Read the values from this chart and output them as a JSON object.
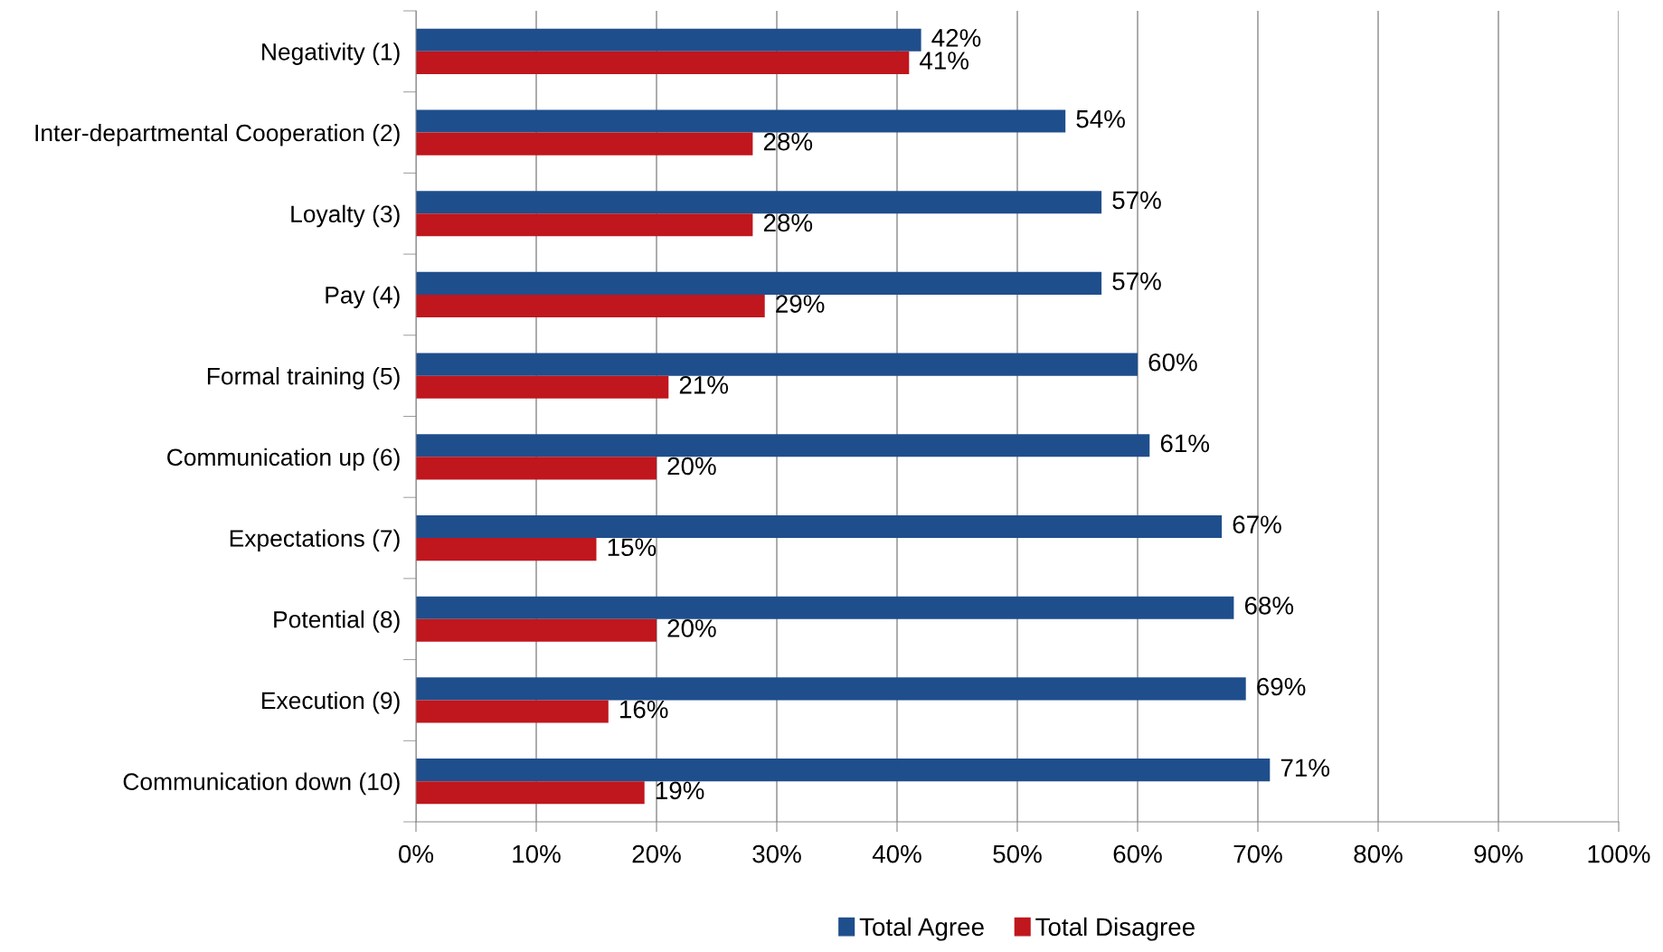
{
  "chart_data": {
    "type": "bar",
    "orientation": "horizontal",
    "categories": [
      "Negativity (1)",
      "Inter-departmental Cooperation (2)",
      "Loyalty (3)",
      "Pay (4)",
      "Formal training (5)",
      "Communication up (6)",
      "Expectations (7)",
      "Potential (8)",
      "Execution (9)",
      "Communication down (10)"
    ],
    "series": [
      {
        "name": "Total Agree",
        "color": "#1f4e8c",
        "values": [
          42,
          54,
          57,
          57,
          60,
          61,
          67,
          68,
          69,
          71
        ],
        "value_labels": [
          "42%",
          "54%",
          "57%",
          "57%",
          "60%",
          "61%",
          "67%",
          "68%",
          "69%",
          "71%"
        ]
      },
      {
        "name": "Total Disagree",
        "color": "#c0161d",
        "values": [
          41,
          28,
          28,
          29,
          21,
          20,
          15,
          20,
          16,
          19
        ],
        "value_labels": [
          "41%",
          "28%",
          "28%",
          "29%",
          "21%",
          "20%",
          "15%",
          "20%",
          "16%",
          "19%"
        ]
      }
    ],
    "xlim": [
      0,
      100
    ],
    "xticks": [
      {
        "value": 0,
        "label": "0%"
      },
      {
        "value": 10,
        "label": "10%"
      },
      {
        "value": 20,
        "label": "20%"
      },
      {
        "value": 30,
        "label": "30%"
      },
      {
        "value": 40,
        "label": "40%"
      },
      {
        "value": 50,
        "label": "50%"
      },
      {
        "value": 60,
        "label": "60%"
      },
      {
        "value": 70,
        "label": "70%"
      },
      {
        "value": 80,
        "label": "80%"
      },
      {
        "value": 90,
        "label": "90%"
      },
      {
        "value": 100,
        "label": "100%"
      }
    ],
    "grid": "x",
    "legend": "bottom"
  }
}
